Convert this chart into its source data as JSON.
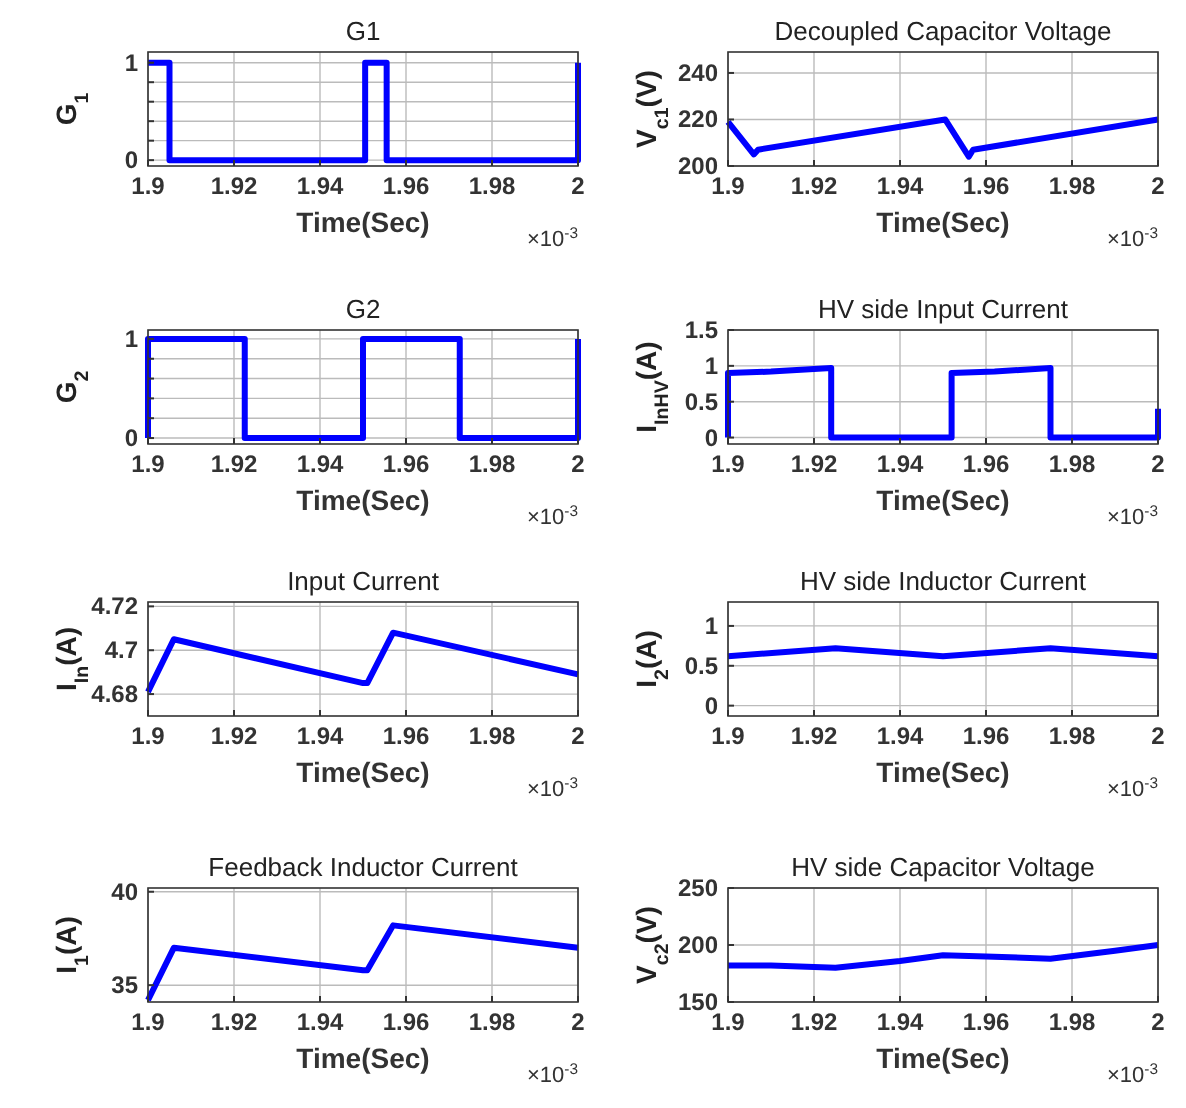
{
  "chart_data": [
    {
      "type": "line",
      "title": "G1",
      "xlabel": "Time(Sec)",
      "ylabel": "G$_{1}$",
      "annotations": [
        "×10$^{-3}$"
      ],
      "xlim": [
        1.9,
        2
      ],
      "xticks": [
        1.9,
        1.92,
        1.94,
        1.96,
        1.98,
        2
      ],
      "ylim": [
        -0.06,
        1.11
      ],
      "yticks": [
        0,
        {
          "value": 0.2,
          "label": null
        },
        {
          "value": 0.4,
          "label": null
        },
        {
          "value": 0.6,
          "label": null
        },
        {
          "value": 0.8,
          "label": null
        },
        1
      ],
      "grid": true,
      "series": [
        {
          "color": "#0000ff",
          "x": [
            1.9,
            1.905,
            1.905,
            1.9505,
            1.9505,
            1.9555,
            1.9555,
            2,
            2
          ],
          "values": [
            1,
            1,
            0,
            0,
            1,
            1,
            0,
            0,
            1
          ]
        }
      ]
    },
    {
      "type": "line",
      "title": "Decoupled Capacitor Voltage",
      "xlabel": "Time(Sec)",
      "ylabel": "V$_{c1}$(V)",
      "annotations": [
        "×10$^{-3}$"
      ],
      "xlim": [
        1.9,
        2
      ],
      "xticks": [
        1.9,
        1.92,
        1.94,
        1.96,
        1.98,
        2
      ],
      "ylim": [
        200,
        249
      ],
      "yticks": [
        200,
        220,
        240
      ],
      "grid": true,
      "series": [
        {
          "color": "#0000ff",
          "x": [
            1.9,
            1.906,
            1.907,
            1.9505,
            1.956,
            1.957,
            2
          ],
          "values": [
            219,
            205,
            207,
            220,
            204,
            207,
            220
          ]
        }
      ]
    },
    {
      "type": "line",
      "title": "G2",
      "xlabel": "Time(Sec)",
      "ylabel": "G$_{2}$",
      "annotations": [
        "×10$^{-3}$"
      ],
      "xlim": [
        1.9,
        2
      ],
      "xticks": [
        1.9,
        1.92,
        1.94,
        1.96,
        1.98,
        2
      ],
      "ylim": [
        -0.06,
        1.09
      ],
      "yticks": [
        0,
        {
          "value": 0.2,
          "label": null
        },
        {
          "value": 0.4,
          "label": null
        },
        {
          "value": 0.6,
          "label": null
        },
        {
          "value": 0.8,
          "label": null
        },
        1
      ],
      "grid": true,
      "series": [
        {
          "color": "#0000ff",
          "x": [
            1.9,
            1.9,
            1.9225,
            1.9225,
            1.95,
            1.95,
            1.9725,
            1.9725,
            2,
            2
          ],
          "values": [
            0,
            1,
            1,
            0,
            0,
            1,
            1,
            0,
            0,
            1
          ]
        }
      ]
    },
    {
      "type": "line",
      "title": "HV side Input Current",
      "xlabel": "Time(Sec)",
      "ylabel": "I$_{InHV}$(A)",
      "annotations": [
        "×10$^{-3}$"
      ],
      "xlim": [
        1.9,
        2
      ],
      "xticks": [
        1.9,
        1.92,
        1.94,
        1.96,
        1.98,
        2
      ],
      "ylim": [
        -0.09,
        1.5
      ],
      "yticks": [
        0,
        0.5,
        1,
        1.5
      ],
      "grid": true,
      "series": [
        {
          "color": "#0000ff",
          "x": [
            1.9,
            1.9,
            1.91,
            1.924,
            1.924,
            1.952,
            1.952,
            1.962,
            1.975,
            1.975,
            2,
            2
          ],
          "values": [
            0,
            0.9,
            0.92,
            0.97,
            0,
            0,
            0.9,
            0.92,
            0.97,
            0,
            0,
            0.4
          ]
        }
      ]
    },
    {
      "type": "line",
      "title": "Input Current",
      "xlabel": "Time(Sec)",
      "ylabel": "I$_{In}$(A)",
      "annotations": [
        "×10$^{-3}$"
      ],
      "xlim": [
        1.9,
        2
      ],
      "xticks": [
        1.9,
        1.92,
        1.94,
        1.96,
        1.98,
        2
      ],
      "ylim": [
        4.67,
        4.722
      ],
      "yticks": [
        4.68,
        {
          "value": 4.7,
          "label": "4.7"
        },
        4.72
      ],
      "grid": true,
      "series": [
        {
          "color": "#0000ff",
          "x": [
            1.9,
            1.906,
            1.95,
            1.951,
            1.957,
            2
          ],
          "values": [
            4.681,
            4.705,
            4.685,
            4.685,
            4.708,
            4.689
          ]
        }
      ]
    },
    {
      "type": "line",
      "title": "HV side Inductor Current",
      "xlabel": "Time(Sec)",
      "ylabel": "I$_{2}$(A)",
      "annotations": [
        "×10$^{-3}$"
      ],
      "xlim": [
        1.9,
        2
      ],
      "xticks": [
        1.9,
        1.92,
        1.94,
        1.96,
        1.98,
        2
      ],
      "ylim": [
        -0.13,
        1.3
      ],
      "yticks": [
        0,
        0.5,
        1
      ],
      "grid": true,
      "series": [
        {
          "color": "#0000ff",
          "x": [
            1.9,
            1.925,
            1.95,
            1.975,
            2
          ],
          "values": [
            0.62,
            0.72,
            0.62,
            0.72,
            0.62
          ]
        }
      ]
    },
    {
      "type": "line",
      "title": "Feedback Inductor Current",
      "xlabel": "Time(Sec)",
      "ylabel": "I$_{1}$(A)",
      "annotations": [
        "×10$^{-3}$"
      ],
      "xlim": [
        1.9,
        2
      ],
      "xticks": [
        1.9,
        1.92,
        1.94,
        1.96,
        1.98,
        2
      ],
      "ylim": [
        34.1,
        40.2
      ],
      "yticks": [
        35,
        40
      ],
      "grid": true,
      "series": [
        {
          "color": "#0000ff",
          "x": [
            1.9,
            1.906,
            1.95,
            1.951,
            1.957,
            2
          ],
          "values": [
            34.2,
            37,
            35.8,
            35.8,
            38.2,
            37
          ]
        }
      ]
    },
    {
      "type": "line",
      "title": "HV side Capacitor Voltage",
      "xlabel": "Time(Sec)",
      "ylabel": "V$_{c2}$(V)",
      "annotations": [
        "×10$^{-3}$"
      ],
      "xlim": [
        1.9,
        2
      ],
      "xticks": [
        1.9,
        1.92,
        1.94,
        1.96,
        1.98,
        2
      ],
      "ylim": [
        150,
        250
      ],
      "yticks": [
        150,
        200,
        250
      ],
      "grid": true,
      "series": [
        {
          "color": "#0000ff",
          "x": [
            1.9,
            1.91,
            1.925,
            1.94,
            1.95,
            1.96,
            1.975,
            1.99,
            2
          ],
          "values": [
            182,
            182,
            180,
            186,
            191,
            190,
            188,
            195,
            200
          ]
        }
      ]
    }
  ]
}
